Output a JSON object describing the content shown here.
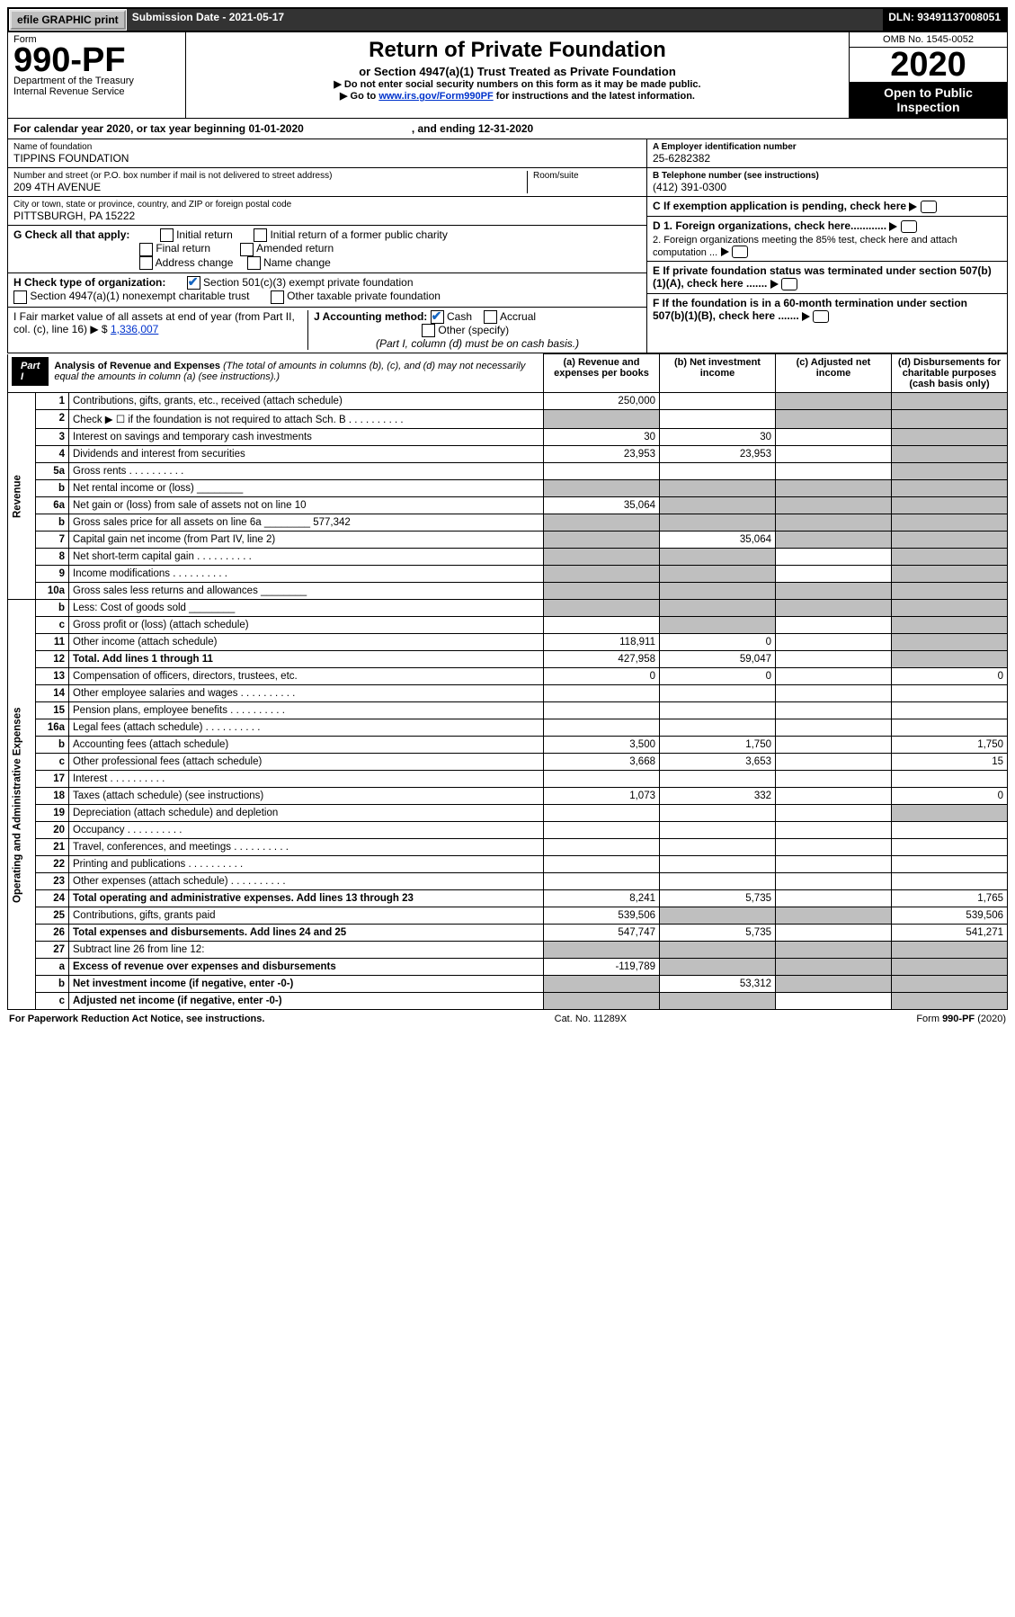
{
  "top": {
    "efile": "efile GRAPHIC print",
    "subdate_lbl": "Submission Date - ",
    "subdate": "2021-05-17",
    "dln_lbl": "DLN: ",
    "dln": "93491137008051"
  },
  "form": {
    "form": "Form",
    "no": "990-PF",
    "dept": "Department of the Treasury",
    "irs": "Internal Revenue Service"
  },
  "title": {
    "main": "Return of Private Foundation",
    "sub": "or Section 4947(a)(1) Trust Treated as Private Foundation",
    "warn": "▶ Do not enter social security numbers on this form as it may be made public.",
    "go": "▶ Go to ",
    "link": "www.irs.gov/Form990PF",
    "go2": " for instructions and the latest information."
  },
  "year": {
    "omb": "OMB No. 1545-0052",
    "yr": "2020",
    "open": "Open to Public Inspection"
  },
  "cy": {
    "a": "For calendar year 2020, or tax year beginning 01-01-2020",
    "b": ", and ending 12-31-2020"
  },
  "name": {
    "lbl": "Name of foundation",
    "val": "TIPPINS FOUNDATION"
  },
  "addr": {
    "lbl": "Number and street (or P.O. box number if mail is not delivered to street address)",
    "val": "209 4TH AVENUE",
    "rm": "Room/suite"
  },
  "city": {
    "lbl": "City or town, state or province, country, and ZIP or foreign postal code",
    "val": "PITTSBURGH, PA  15222"
  },
  "ein": {
    "lbl": "A Employer identification number",
    "val": "25-6282382"
  },
  "tel": {
    "lbl": "B Telephone number (see instructions)",
    "val": "(412) 391-0300"
  },
  "cpend": "C If exemption application is pending, check here",
  "g": {
    "lbl": "G Check all that apply:",
    "o1": "Initial return",
    "o2": "Initial return of a former public charity",
    "o3": "Final return",
    "o4": "Amended return",
    "o5": "Address change",
    "o6": "Name change"
  },
  "h": {
    "lbl": "H Check type of organization:",
    "o1": "Section 501(c)(3) exempt private foundation",
    "o2": "Section 4947(a)(1) nonexempt charitable trust",
    "o3": "Other taxable private foundation"
  },
  "i": {
    "lbl": "I Fair market value of all assets at end of year (from Part II, col. (c), line 16) ▶ $",
    "val": "1,336,007"
  },
  "j": {
    "lbl": "J Accounting method:",
    "o1": "Cash",
    "o2": "Accrual",
    "o3": "Other (specify)",
    "note": "(Part I, column (d) must be on cash basis.)"
  },
  "d": {
    "d1": "D 1. Foreign organizations, check here............",
    "d2": "2. Foreign organizations meeting the 85% test, check here and attach computation ..."
  },
  "e": "E  If private foundation status was terminated under section 507(b)(1)(A), check here .......",
  "f": "F  If the foundation is in a 60-month termination under section 507(b)(1)(B), check here .......",
  "part1": {
    "tag": "Part I",
    "title": "Analysis of Revenue and Expenses",
    "par": "(The total of amounts in columns (b), (c), and (d) may not necessarily equal the amounts in column (a) (see instructions).)",
    "ha": "(a)  Revenue and expenses per books",
    "hb": "(b)  Net investment income",
    "hc": "(c)  Adjusted net income",
    "hd": "(d)  Disbursements for charitable purposes (cash basis only)"
  },
  "side": {
    "rev": "Revenue",
    "exp": "Operating and Administrative Expenses"
  },
  "rows": [
    {
      "n": "1",
      "d": "Contributions, gifts, grants, etc., received (attach schedule)",
      "a": "250,000",
      "sc": "cd"
    },
    {
      "n": "2",
      "d": "Check ▶ ☐ if the foundation is not required to attach Sch. B",
      "dotted": true,
      "sa": true,
      "sc": "cd"
    },
    {
      "n": "3",
      "d": "Interest on savings and temporary cash investments",
      "a": "30",
      "b": "30",
      "sc": "d"
    },
    {
      "n": "4",
      "d": "Dividends and interest from securities",
      "a": "23,953",
      "b": "23,953",
      "sc": "d"
    },
    {
      "n": "5a",
      "d": "Gross rents",
      "dotted": true,
      "sc": "d"
    },
    {
      "n": "b",
      "d": "Net rental income or (loss)",
      "inset": true,
      "sa": true,
      "sc": "bcd"
    },
    {
      "n": "6a",
      "d": "Net gain or (loss) from sale of assets not on line 10",
      "a": "35,064",
      "sc": "bcd"
    },
    {
      "n": "b",
      "d": "Gross sales price for all assets on line 6a",
      "inset": "577,342",
      "sa": true,
      "sc": "bcd"
    },
    {
      "n": "7",
      "d": "Capital gain net income (from Part IV, line 2)",
      "sa": true,
      "b": "35,064",
      "sc": "cd"
    },
    {
      "n": "8",
      "d": "Net short-term capital gain",
      "dotted": true,
      "sa": true,
      "sc": "bd"
    },
    {
      "n": "9",
      "d": "Income modifications",
      "dotted": true,
      "sa": true,
      "sc": "bd"
    },
    {
      "n": "10a",
      "d": "Gross sales less returns and allowances",
      "inset": true,
      "sa": true,
      "sc": "bcd"
    },
    {
      "n": "b",
      "d": "Less: Cost of goods sold",
      "inset": true,
      "sa": true,
      "sc": "bcd"
    },
    {
      "n": "c",
      "d": "Gross profit or (loss) (attach schedule)",
      "sc": "bd"
    },
    {
      "n": "11",
      "d": "Other income (attach schedule)",
      "a": "118,911",
      "b": "0",
      "sc": "d"
    },
    {
      "n": "12",
      "d": "Total. Add lines 1 through 11",
      "bold": true,
      "a": "427,958",
      "b": "59,047",
      "sc": "d"
    },
    {
      "n": "13",
      "d": "Compensation of officers, directors, trustees, etc.",
      "a": "0",
      "b": "0",
      "dv": "0"
    },
    {
      "n": "14",
      "d": "Other employee salaries and wages",
      "dotted": true
    },
    {
      "n": "15",
      "d": "Pension plans, employee benefits",
      "dotted": true
    },
    {
      "n": "16a",
      "d": "Legal fees (attach schedule)",
      "dotted": true
    },
    {
      "n": "b",
      "d": "Accounting fees (attach schedule)",
      "a": "3,500",
      "b": "1,750",
      "dv": "1,750"
    },
    {
      "n": "c",
      "d": "Other professional fees (attach schedule)",
      "a": "3,668",
      "b": "3,653",
      "dv": "15"
    },
    {
      "n": "17",
      "d": "Interest",
      "dotted": true
    },
    {
      "n": "18",
      "d": "Taxes (attach schedule) (see instructions)",
      "a": "1,073",
      "b": "332",
      "dv": "0"
    },
    {
      "n": "19",
      "d": "Depreciation (attach schedule) and depletion",
      "sc": "d"
    },
    {
      "n": "20",
      "d": "Occupancy",
      "dotted": true
    },
    {
      "n": "21",
      "d": "Travel, conferences, and meetings",
      "dotted": true
    },
    {
      "n": "22",
      "d": "Printing and publications",
      "dotted": true
    },
    {
      "n": "23",
      "d": "Other expenses (attach schedule)",
      "dotted": true
    },
    {
      "n": "24",
      "d": "Total operating and administrative expenses. Add lines 13 through 23",
      "bold": true,
      "a": "8,241",
      "b": "5,735",
      "dv": "1,765"
    },
    {
      "n": "25",
      "d": "Contributions, gifts, grants paid",
      "a": "539,506",
      "sc": "bc",
      "dv": "539,506"
    },
    {
      "n": "26",
      "d": "Total expenses and disbursements. Add lines 24 and 25",
      "bold": true,
      "a": "547,747",
      "b": "5,735",
      "dv": "541,271"
    },
    {
      "n": "27",
      "d": "Subtract line 26 from line 12:",
      "sa": true,
      "sc": "bcd"
    },
    {
      "n": "a",
      "d": "Excess of revenue over expenses and disbursements",
      "bold": true,
      "a": "-119,789",
      "sc": "bcd"
    },
    {
      "n": "b",
      "d": "Net investment income (if negative, enter -0-)",
      "bold": true,
      "sa": true,
      "b": "53,312",
      "sc": "cd"
    },
    {
      "n": "c",
      "d": "Adjusted net income (if negative, enter -0-)",
      "bold": true,
      "sa": true,
      "sc": "bd"
    }
  ],
  "foot": {
    "l": "For Paperwork Reduction Act Notice, see instructions.",
    "m": "Cat. No. 11289X",
    "r": "Form 990-PF (2020)"
  }
}
